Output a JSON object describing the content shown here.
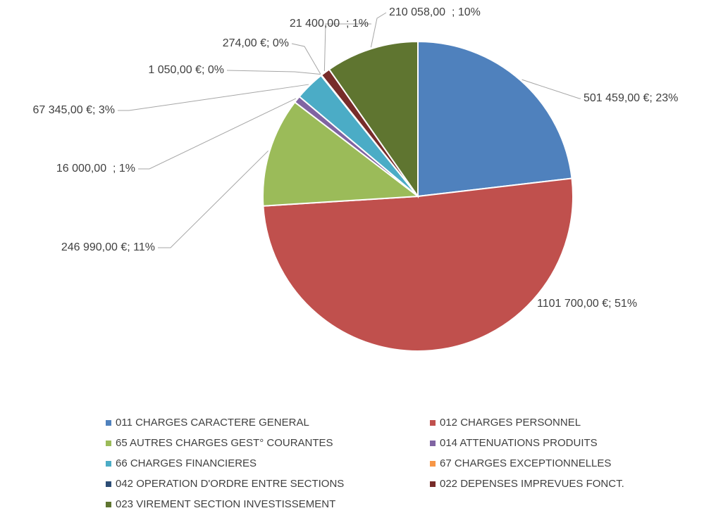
{
  "chart_data": {
    "type": "pie",
    "categories": [
      "011 CHARGES CARACTERE GENERAL",
      "012 CHARGES PERSONNEL",
      "65 AUTRES CHARGES GEST° COURANTES",
      "014 ATTENUATIONS PRODUITS",
      "66 CHARGES FINANCIERES",
      "67 CHARGES EXCEPTIONNELLES",
      "042 OPERATION D'ORDRE ENTRE SECTIONS",
      "022 DEPENSES IMPREVUES FONCT.",
      "023 VIREMENT SECTION INVESTISSEMENT"
    ],
    "values": [
      501459,
      1101700,
      246990,
      16000,
      67345,
      1050,
      274,
      21400,
      210058
    ],
    "value_labels": [
      "501 459,00 €; 23%",
      "1101 700,00 €; 51%",
      "246 990,00 €; 11%",
      "16 000,00  ; 1%",
      "67 345,00 €; 3%",
      "1 050,00 €; 0%",
      "274,00 €; 0%",
      "21 400,00  ; 1%",
      "210 058,00  ; 10%"
    ],
    "colors": [
      "#4f81bd",
      "#c0504d",
      "#9bbb59",
      "#8064a2",
      "#4bacc6",
      "#f79646",
      "#2c4d75",
      "#772c2a",
      "#5f7530"
    ],
    "legend": "bottom"
  }
}
